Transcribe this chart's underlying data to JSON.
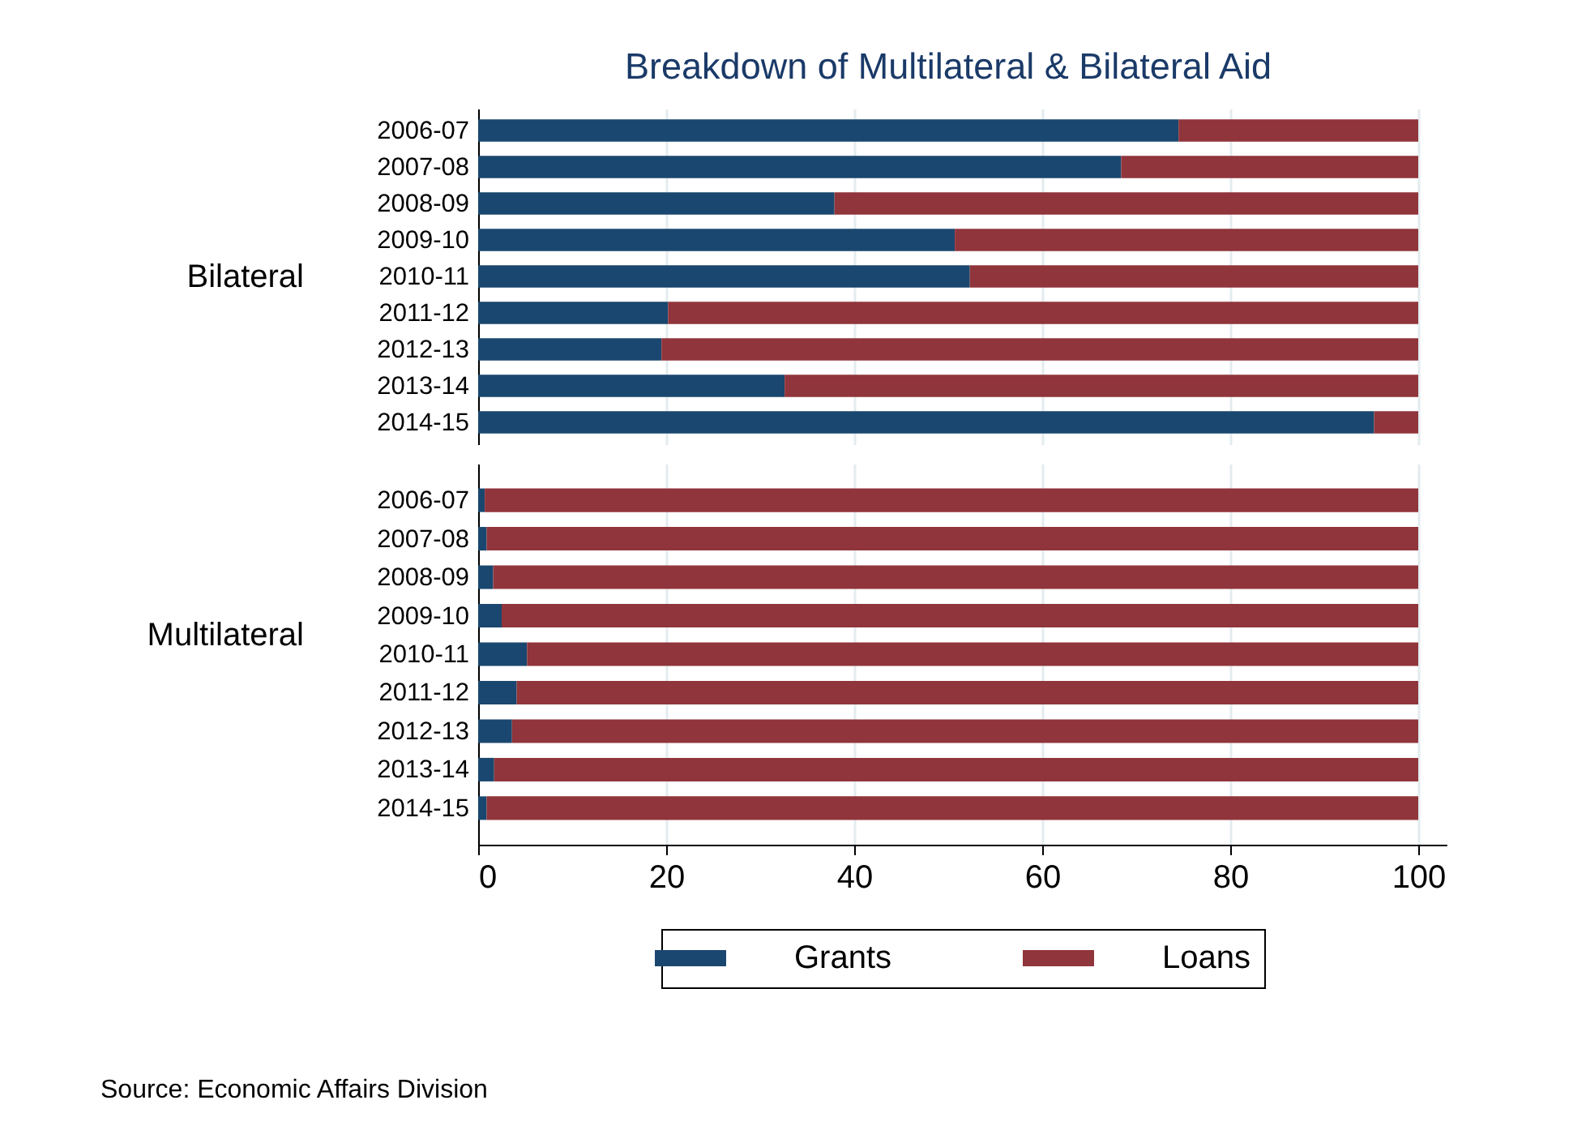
{
  "chart_data": [
    {
      "type": "bar",
      "orientation": "horizontal",
      "stacked": true,
      "title": "Breakdown of Multilateral & Bilateral Aid",
      "ylabel": "Bilateral",
      "categories": [
        "2006-07",
        "2007-08",
        "2008-09",
        "2009-10",
        "2010-11",
        "2011-12",
        "2012-13",
        "2013-14",
        "2014-15"
      ],
      "series": [
        {
          "color": "#1a476f",
          "values": [
            74.5,
            68.4,
            37.9,
            50.7,
            52.3,
            20.2,
            19.5,
            32.6,
            95.3
          ]
        },
        {
          "color": "#90353b",
          "values": [
            25.5,
            31.6,
            62.1,
            49.3,
            47.7,
            79.8,
            80.5,
            67.4,
            4.7
          ]
        }
      ],
      "xlim": [
        0,
        100
      ],
      "xticks": [
        0,
        20,
        40,
        60,
        80,
        100
      ],
      "grid": "x",
      "tick_labels": "y"
    },
    {
      "type": "bar",
      "orientation": "horizontal",
      "stacked": true,
      "ylabel": "Multilateral",
      "categories": [
        "2006-07",
        "2007-08",
        "2008-09",
        "2009-10",
        "2010-11",
        "2011-12",
        "2012-13",
        "2013-14",
        "2014-15"
      ],
      "series": [
        {
          "name": "Grants",
          "color": "#1a476f",
          "values": [
            0.7,
            0.9,
            1.6,
            2.5,
            5.2,
            4.1,
            3.6,
            1.7,
            0.9
          ]
        },
        {
          "name": "Loans",
          "color": "#90353b",
          "values": [
            99.3,
            99.1,
            98.4,
            97.5,
            94.8,
            95.9,
            96.4,
            98.3,
            99.1
          ]
        }
      ],
      "xlim": [
        0,
        103
      ],
      "xticks": [
        0,
        20,
        40,
        60,
        80,
        100
      ],
      "grid": "x",
      "legend": "bottom",
      "annotations": [
        "Source: Economic Affairs Division"
      ]
    }
  ]
}
